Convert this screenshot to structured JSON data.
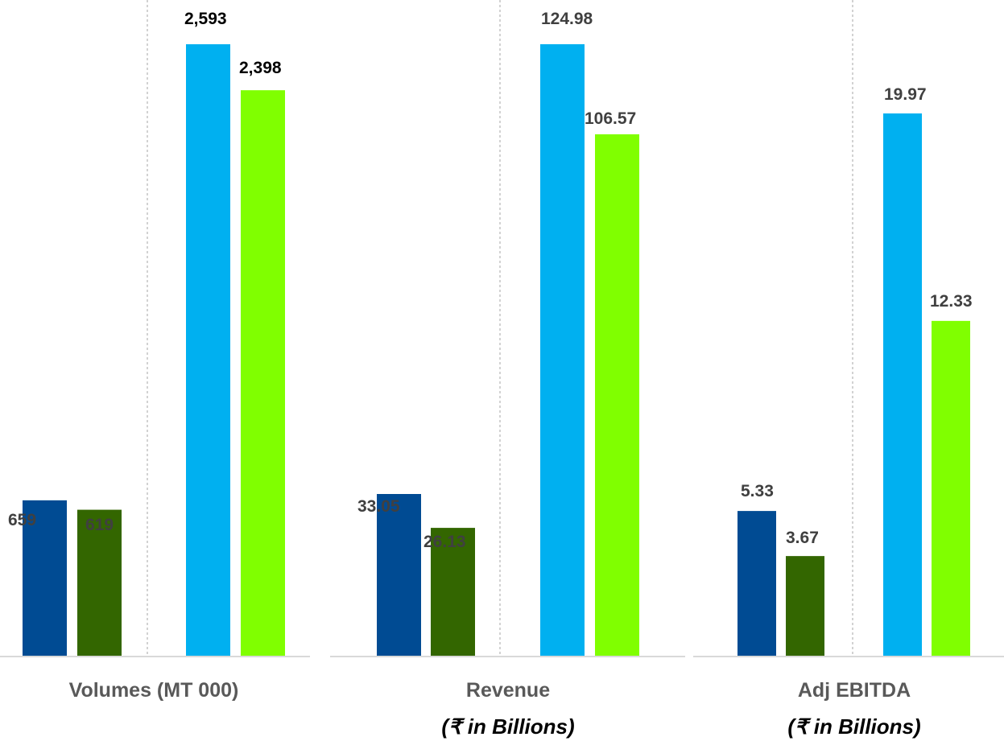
{
  "chart_data": [
    {
      "type": "bar",
      "title": "Volumes (MT 000)",
      "subtitle": "",
      "groups": [
        {
          "values": [
            659,
            619
          ],
          "labels": [
            "659",
            "619"
          ]
        },
        {
          "values": [
            2593,
            2398
          ],
          "labels": [
            "2,593",
            "2,398"
          ]
        }
      ]
    },
    {
      "type": "bar",
      "title": "Revenue",
      "subtitle": "(₹ in Billions)",
      "groups": [
        {
          "values": [
            33.05,
            26.13
          ],
          "labels": [
            "33.05",
            "26.13"
          ]
        },
        {
          "values": [
            124.98,
            106.57
          ],
          "labels": [
            "124.98",
            "106.57"
          ]
        }
      ]
    },
    {
      "type": "bar",
      "title": "Adj EBITDA",
      "subtitle": "(₹ in Billions)",
      "groups": [
        {
          "values": [
            5.33,
            3.67
          ],
          "labels": [
            "5.33",
            "3.67"
          ]
        },
        {
          "values": [
            19.97,
            12.33
          ],
          "labels": [
            "19.97",
            "12.33"
          ]
        }
      ]
    }
  ],
  "colors": {
    "group1_current": "#004b93",
    "group1_prior": "#336600",
    "group2_current": "#00b0f0",
    "group2_prior": "#80ff00",
    "label_dark": "#404040",
    "label_black": "#000000",
    "baseline": "#d9d9d9",
    "divider": "#a6a6a6"
  }
}
